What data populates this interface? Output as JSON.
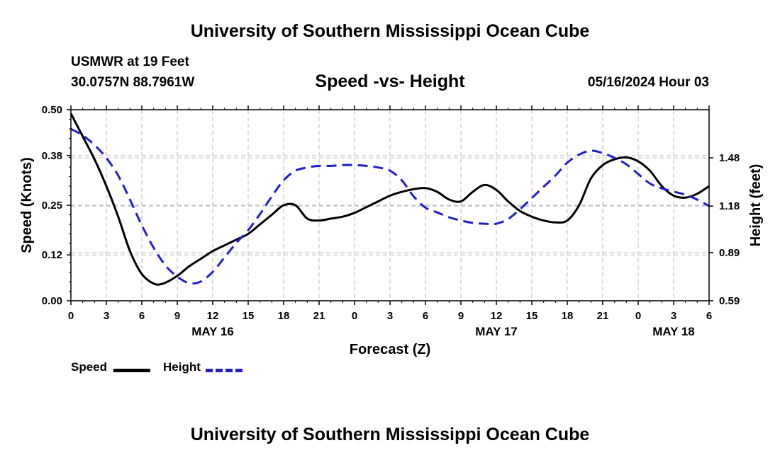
{
  "header": {
    "title": "University of Southern Mississippi Ocean Cube",
    "station": "USMWR at 19 Feet",
    "coordinates": "30.0757N  88.7961W",
    "chart_title": "Speed -vs- Height",
    "datetime": "05/16/2024 Hour 03"
  },
  "footer": {
    "title": "University of Southern Mississippi Ocean Cube"
  },
  "legend": {
    "items": [
      {
        "label": "Speed",
        "color": "#000000",
        "style": "solid"
      },
      {
        "label": "Height",
        "color": "#1f1fd0",
        "style": "dashed"
      }
    ]
  },
  "chart_data": {
    "type": "line",
    "title": "Speed -vs- Height",
    "xlabel": "Forecast (Z)",
    "ylabel": "Speed (Knots)",
    "y2label": "Height (feet)",
    "x_unit": "forecast hour",
    "xlim": [
      0,
      54
    ],
    "ylim": [
      0,
      0.5
    ],
    "y2lim": [
      0.59,
      1.78
    ],
    "x_ticks": [
      0,
      3,
      6,
      9,
      12,
      15,
      18,
      21,
      24,
      27,
      30,
      33,
      36,
      39,
      42,
      45,
      48,
      51,
      54
    ],
    "x_tick_labels": [
      "0",
      "3",
      "6",
      "9",
      "12",
      "15",
      "18",
      "21",
      "0",
      "3",
      "6",
      "9",
      "12",
      "15",
      "18",
      "21",
      "0",
      "3",
      "6"
    ],
    "date_labels": [
      {
        "label": "MAY 16",
        "x": 12
      },
      {
        "label": "MAY 17",
        "x": 36
      },
      {
        "label": "MAY 18",
        "x": 51
      }
    ],
    "y_ticks": [
      0.0,
      0.12,
      0.25,
      0.38,
      0.5
    ],
    "y_tick_labels": [
      "0.00",
      "0.12",
      "0.25",
      "0.38",
      "0.50"
    ],
    "y2_ticks": [
      0.59,
      0.89,
      1.18,
      1.48
    ],
    "y2_tick_labels": [
      "0.59",
      "0.89",
      "1.18",
      "1.48"
    ],
    "grid": true,
    "series": [
      {
        "name": "Speed",
        "axis": "left",
        "x": [
          0,
          1,
          2,
          3,
          4,
          5,
          6,
          7,
          7.8,
          9,
          10,
          11,
          12,
          13,
          14,
          15,
          16,
          17,
          18,
          19,
          20,
          21,
          22,
          23,
          24,
          25,
          26,
          27,
          28,
          29,
          30,
          31,
          32,
          33,
          34,
          35,
          36,
          37,
          38,
          39,
          40,
          41,
          42,
          43,
          44,
          45,
          46,
          47,
          48,
          49,
          50,
          51,
          52,
          53,
          54
        ],
        "values": [
          0.49,
          0.43,
          0.37,
          0.3,
          0.22,
          0.13,
          0.07,
          0.045,
          0.045,
          0.065,
          0.09,
          0.11,
          0.13,
          0.145,
          0.16,
          0.175,
          0.2,
          0.225,
          0.25,
          0.25,
          0.215,
          0.21,
          0.215,
          0.22,
          0.23,
          0.245,
          0.26,
          0.275,
          0.285,
          0.292,
          0.295,
          0.285,
          0.265,
          0.26,
          0.285,
          0.303,
          0.29,
          0.26,
          0.235,
          0.22,
          0.21,
          0.205,
          0.21,
          0.25,
          0.32,
          0.355,
          0.37,
          0.375,
          0.365,
          0.34,
          0.3,
          0.275,
          0.27,
          0.28,
          0.3
        ]
      },
      {
        "name": "Height",
        "axis": "right",
        "x": [
          0,
          1,
          2,
          3,
          4,
          5,
          6,
          7,
          8,
          9,
          10,
          11,
          12,
          13,
          14,
          15,
          16,
          17,
          18,
          19,
          20,
          21,
          22,
          23,
          24,
          25,
          26,
          27,
          28,
          29,
          30,
          31,
          32,
          33,
          34,
          35,
          36,
          37,
          38,
          39,
          40,
          41,
          42,
          43,
          44,
          45,
          46,
          47,
          48,
          49,
          50,
          51,
          52,
          53,
          54
        ],
        "values": [
          1.66,
          1.62,
          1.56,
          1.48,
          1.37,
          1.22,
          1.06,
          0.92,
          0.81,
          0.74,
          0.7,
          0.71,
          0.77,
          0.86,
          0.95,
          1.03,
          1.13,
          1.24,
          1.34,
          1.4,
          1.42,
          1.43,
          1.43,
          1.435,
          1.435,
          1.43,
          1.42,
          1.4,
          1.34,
          1.24,
          1.17,
          1.14,
          1.11,
          1.09,
          1.075,
          1.07,
          1.07,
          1.1,
          1.16,
          1.23,
          1.3,
          1.37,
          1.45,
          1.5,
          1.525,
          1.51,
          1.48,
          1.44,
          1.38,
          1.32,
          1.29,
          1.27,
          1.25,
          1.22,
          1.18
        ]
      }
    ]
  }
}
